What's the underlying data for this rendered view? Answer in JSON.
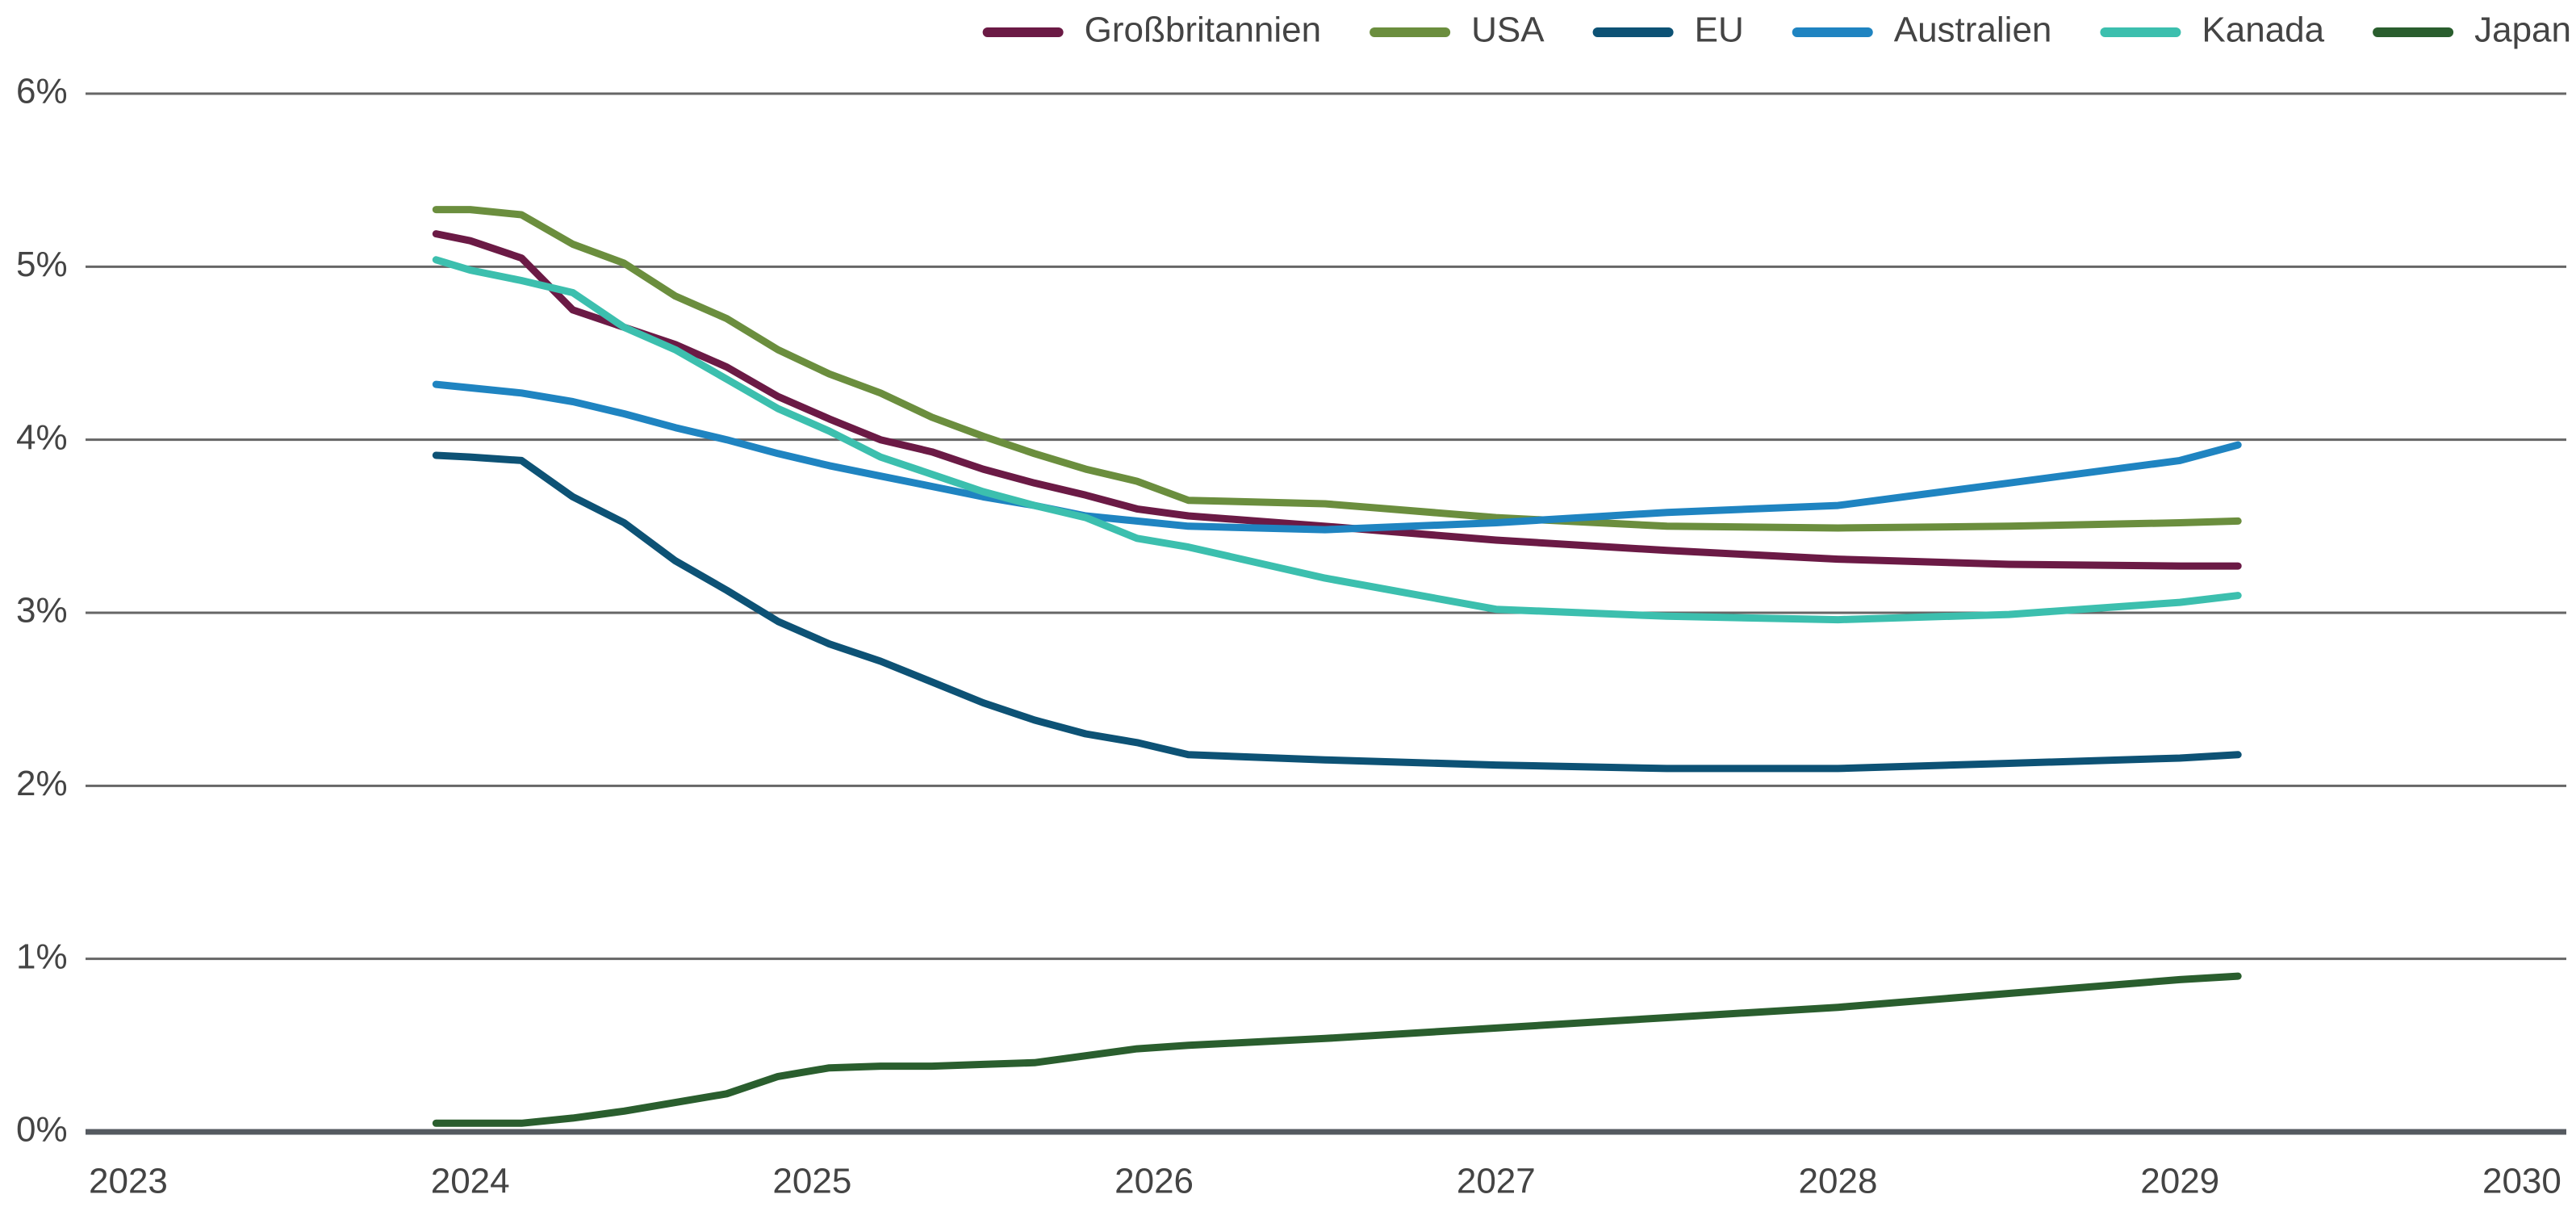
{
  "chart_data": {
    "type": "line",
    "x": [
      2023.9,
      2024.0,
      2024.15,
      2024.3,
      2024.45,
      2024.6,
      2024.75,
      2024.9,
      2025.05,
      2025.2,
      2025.35,
      2025.5,
      2025.65,
      2025.8,
      2025.95,
      2026.1,
      2026.5,
      2027.0,
      2027.5,
      2028.0,
      2028.5,
      2029.0,
      2029.17
    ],
    "series": [
      {
        "name": "Großbritannien",
        "color": "#6b1a45",
        "values": [
          5.19,
          5.15,
          5.05,
          4.75,
          4.65,
          4.55,
          4.42,
          4.25,
          4.12,
          4.0,
          3.93,
          3.83,
          3.75,
          3.68,
          3.6,
          3.56,
          3.5,
          3.42,
          3.36,
          3.31,
          3.28,
          3.27,
          3.27
        ]
      },
      {
        "name": "USA",
        "color": "#6b8e3e",
        "values": [
          5.33,
          5.33,
          5.3,
          5.13,
          5.02,
          4.83,
          4.7,
          4.52,
          4.38,
          4.27,
          4.13,
          4.02,
          3.92,
          3.83,
          3.76,
          3.65,
          3.63,
          3.55,
          3.5,
          3.49,
          3.5,
          3.52,
          3.53
        ]
      },
      {
        "name": "EU",
        "color": "#0d5275",
        "values": [
          3.91,
          3.9,
          3.88,
          3.67,
          3.52,
          3.3,
          3.13,
          2.95,
          2.82,
          2.72,
          2.6,
          2.48,
          2.38,
          2.3,
          2.25,
          2.18,
          2.15,
          2.12,
          2.1,
          2.1,
          2.13,
          2.16,
          2.18
        ]
      },
      {
        "name": "Australien",
        "color": "#1f84c1",
        "values": [
          4.32,
          4.3,
          4.27,
          4.22,
          4.15,
          4.07,
          4.0,
          3.92,
          3.85,
          3.79,
          3.73,
          3.67,
          3.62,
          3.56,
          3.53,
          3.5,
          3.48,
          3.52,
          3.58,
          3.62,
          3.75,
          3.88,
          3.97
        ]
      },
      {
        "name": "Kanada",
        "color": "#3cbfae",
        "values": [
          5.04,
          4.98,
          4.92,
          4.85,
          4.65,
          4.52,
          4.35,
          4.18,
          4.05,
          3.9,
          3.8,
          3.7,
          3.62,
          3.55,
          3.43,
          3.38,
          3.2,
          3.02,
          2.98,
          2.96,
          2.99,
          3.06,
          3.1
        ]
      },
      {
        "name": "Japan",
        "color": "#2a5e2e",
        "values": [
          0.05,
          0.05,
          0.05,
          0.08,
          0.12,
          0.17,
          0.22,
          0.32,
          0.37,
          0.38,
          0.38,
          0.39,
          0.4,
          0.44,
          0.48,
          0.5,
          0.54,
          0.6,
          0.66,
          0.72,
          0.8,
          0.88,
          0.9
        ]
      }
    ],
    "xlim": [
      2022.875,
      2030.13
    ],
    "xticks": [
      2023,
      2024,
      2025,
      2026,
      2027,
      2028,
      2029,
      2030
    ],
    "ylim": [
      0,
      6
    ],
    "yticks": [
      {
        "value": 0,
        "label": "0%"
      },
      {
        "value": 1,
        "label": "1%"
      },
      {
        "value": 2,
        "label": "2%"
      },
      {
        "value": 3,
        "label": "3%"
      },
      {
        "value": 4,
        "label": "4%"
      },
      {
        "value": 5,
        "label": "5%"
      },
      {
        "value": 6,
        "label": "6%"
      }
    ],
    "grid": true,
    "legend": "top"
  }
}
